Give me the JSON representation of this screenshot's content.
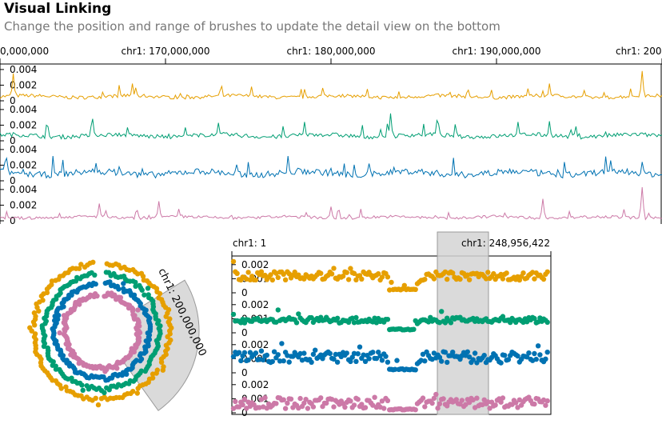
{
  "header": {
    "title": "Visual Linking",
    "subtitle": "Change the position and range of brushes to update the detail view on the bottom"
  },
  "colors": {
    "series": [
      "#e69f00",
      "#009e73",
      "#0072b2",
      "#cc79a7"
    ],
    "brush": "#d3d3d3",
    "axis": "#000000"
  },
  "chart_data": [
    {
      "id": "top-overview",
      "type": "line",
      "x_axis_ticks": [
        "0,000,000",
        "chr1: 170,000,000",
        "chr1: 180,000,000",
        "chr1: 190,000,000",
        "chr1: 200"
      ],
      "y_ticks": [
        "0.004",
        "0.002",
        "0"
      ],
      "series": [
        {
          "baseline": 0.0005,
          "peaks": [
            [
              0.02,
              0.0035
            ],
            [
              0.2,
              0.0022
            ],
            [
              0.38,
              0.0018
            ],
            [
              0.83,
              0.0022
            ],
            [
              0.97,
              0.0038
            ]
          ]
        },
        {
          "baseline": 0.0006,
          "peaks": [
            [
              0.14,
              0.0028
            ],
            [
              0.46,
              0.0024
            ],
            [
              0.59,
              0.0035
            ],
            [
              0.66,
              0.0026
            ],
            [
              0.83,
              0.0025
            ]
          ]
        },
        {
          "baseline": 0.0009,
          "peaks": [
            [
              0.18,
              0.0018
            ],
            [
              0.5,
              0.0016
            ],
            [
              0.97,
              0.0024
            ]
          ]
        },
        {
          "baseline": 0.0004,
          "peaks": [
            [
              0.15,
              0.0022
            ],
            [
              0.24,
              0.0025
            ],
            [
              0.5,
              0.0018
            ],
            [
              0.82,
              0.0028
            ],
            [
              0.97,
              0.0043
            ]
          ]
        }
      ]
    },
    {
      "id": "circular-overview",
      "type": "scatter",
      "brush_label": "chr1: 200,000,000",
      "series_count": 4
    },
    {
      "id": "detail-view",
      "type": "scatter",
      "x_axis_ticks": [
        "chr1: 1",
        "chr1: 248,956,422"
      ],
      "y_ticks": [
        "0.002",
        "0.001",
        "0"
      ],
      "series": [
        {
          "typical": 0.0012,
          "spread": 0.0003
        },
        {
          "typical": 0.0009,
          "spread": 0.0002
        },
        {
          "typical": 0.0011,
          "spread": 0.0004
        },
        {
          "typical": 0.0007,
          "spread": 0.0004
        }
      ]
    }
  ]
}
